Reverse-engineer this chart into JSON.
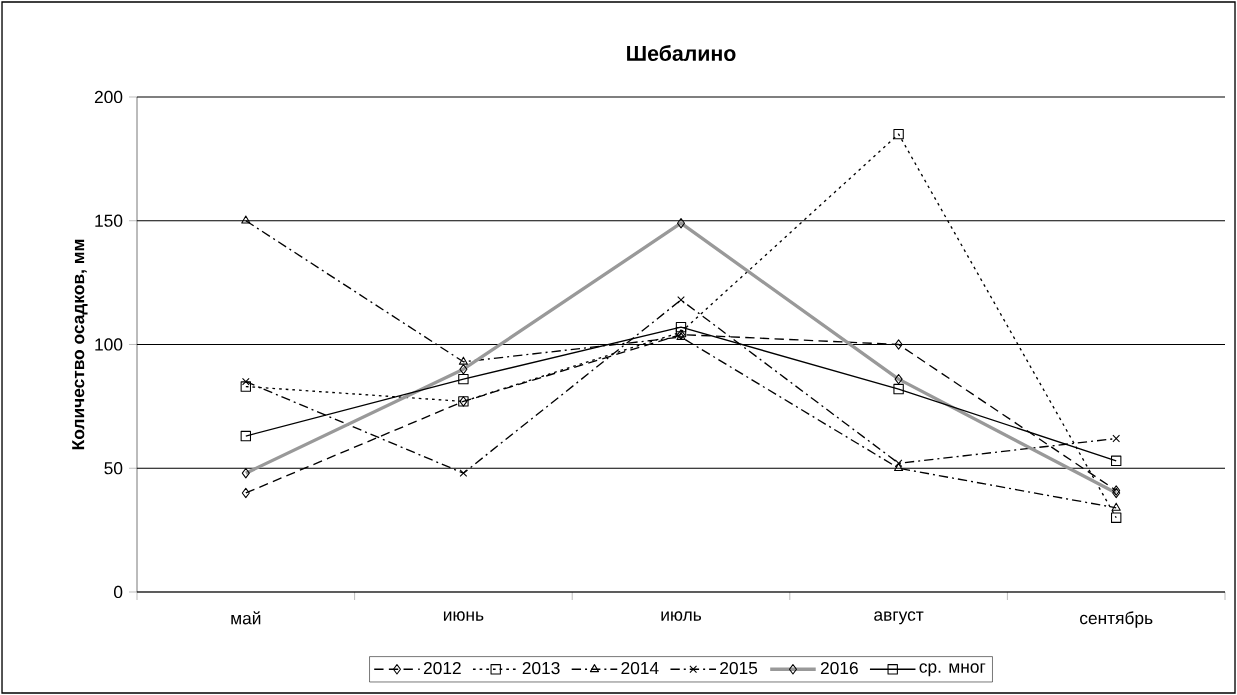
{
  "chart_data": {
    "type": "line",
    "title": "Шебалино",
    "ylabel": "Количество осадков, мм",
    "categories": [
      "май",
      "июнь",
      "июль",
      "август",
      "сентябрь"
    ],
    "series": [
      {
        "name": "2012",
        "color": "#000000",
        "marker": "diamond",
        "line_style": "dashed",
        "values": [
          40,
          77,
          104,
          100,
          41
        ]
      },
      {
        "name": "2013",
        "color": "#000000",
        "marker": "square",
        "line_style": "dotted",
        "values": [
          83,
          77,
          105,
          185,
          30
        ]
      },
      {
        "name": "2014",
        "color": "#000000",
        "marker": "triangle",
        "line_style": "dashdot",
        "values": [
          150,
          93,
          103,
          50,
          34
        ]
      },
      {
        "name": "2015",
        "color": "#000000",
        "marker": "cross",
        "line_style": "dashdot",
        "values": [
          85,
          48,
          118,
          52,
          62
        ]
      },
      {
        "name": "2016",
        "color": "#999999",
        "marker": "diamond",
        "line_style": "solid",
        "values": [
          48,
          90,
          149,
          86,
          40
        ]
      },
      {
        "name": "ср. мног",
        "color": "#000000",
        "marker": "square",
        "line_style": "solid",
        "values": [
          63,
          86,
          107,
          82,
          53
        ]
      }
    ],
    "ylim": [
      0,
      200
    ],
    "yticks": [
      0,
      50,
      100,
      150,
      200
    ],
    "grid": "y",
    "legend": "bottom"
  }
}
